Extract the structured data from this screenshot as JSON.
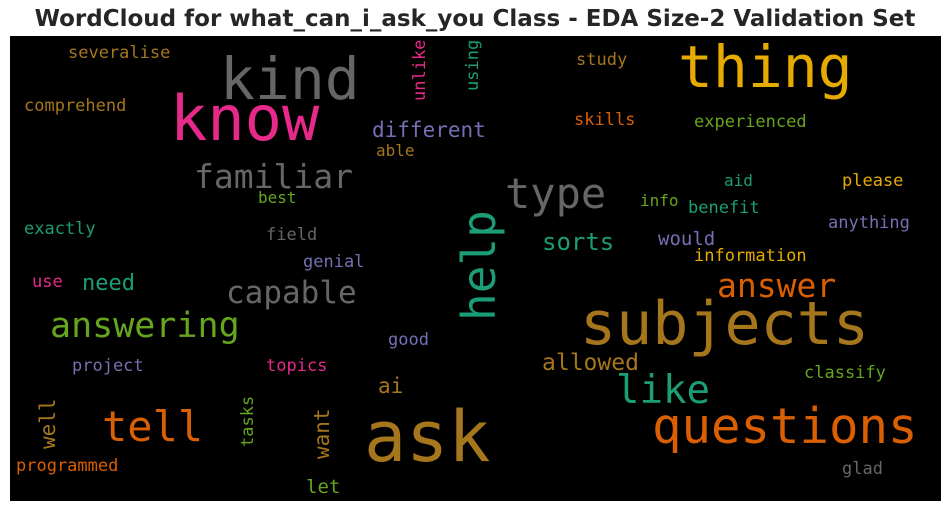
{
  "chart_data": {
    "type": "wordcloud",
    "title": "WordCloud for what_can_i_ask_you Class - EDA Size-2 Validation Set",
    "background": "#000000",
    "colormap": "Dark2",
    "words": [
      {
        "text": "kind",
        "color": "#666666"
      },
      {
        "text": "thing",
        "color": "#e6ab02"
      },
      {
        "text": "know",
        "color": "#e7298a"
      },
      {
        "text": "severalise",
        "color": "#a6761d"
      },
      {
        "text": "comprehend",
        "color": "#a6761d"
      },
      {
        "text": "unlike",
        "color": "#e7298a"
      },
      {
        "text": "using",
        "color": "#1b9e77"
      },
      {
        "text": "study",
        "color": "#a6761d"
      },
      {
        "text": "different",
        "color": "#7570b3"
      },
      {
        "text": "skills",
        "color": "#d95f02"
      },
      {
        "text": "experienced",
        "color": "#66a61e"
      },
      {
        "text": "able",
        "color": "#a6761d"
      },
      {
        "text": "familiar",
        "color": "#666666"
      },
      {
        "text": "type",
        "color": "#666666"
      },
      {
        "text": "aid",
        "color": "#1b9e77"
      },
      {
        "text": "please",
        "color": "#e6ab02"
      },
      {
        "text": "best",
        "color": "#66a61e"
      },
      {
        "text": "info",
        "color": "#66a61e"
      },
      {
        "text": "benefit",
        "color": "#1b9e77"
      },
      {
        "text": "exactly",
        "color": "#1b9e77"
      },
      {
        "text": "field",
        "color": "#666666"
      },
      {
        "text": "help",
        "color": "#1b9e77"
      },
      {
        "text": "sorts",
        "color": "#1b9e77"
      },
      {
        "text": "would",
        "color": "#7570b3"
      },
      {
        "text": "anything",
        "color": "#7570b3"
      },
      {
        "text": "genial",
        "color": "#7570b3"
      },
      {
        "text": "information",
        "color": "#e6ab02"
      },
      {
        "text": "use",
        "color": "#e7298a"
      },
      {
        "text": "need",
        "color": "#1b9e77"
      },
      {
        "text": "capable",
        "color": "#666666"
      },
      {
        "text": "answer",
        "color": "#d95f02"
      },
      {
        "text": "answering",
        "color": "#66a61e"
      },
      {
        "text": "subjects",
        "color": "#a6761d"
      },
      {
        "text": "good",
        "color": "#7570b3"
      },
      {
        "text": "project",
        "color": "#7570b3"
      },
      {
        "text": "topics",
        "color": "#e7298a"
      },
      {
        "text": "allowed",
        "color": "#a6761d"
      },
      {
        "text": "classify",
        "color": "#66a61e"
      },
      {
        "text": "ai",
        "color": "#a6761d"
      },
      {
        "text": "like",
        "color": "#1b9e77"
      },
      {
        "text": "well",
        "color": "#a6761d"
      },
      {
        "text": "tell",
        "color": "#d95f02"
      },
      {
        "text": "tasks",
        "color": "#66a61e"
      },
      {
        "text": "want",
        "color": "#a6761d"
      },
      {
        "text": "ask",
        "color": "#a6761d"
      },
      {
        "text": "questions",
        "color": "#d95f02"
      },
      {
        "text": "programmed",
        "color": "#d95f02"
      },
      {
        "text": "let",
        "color": "#66a61e"
      },
      {
        "text": "glad",
        "color": "#666666"
      }
    ]
  }
}
